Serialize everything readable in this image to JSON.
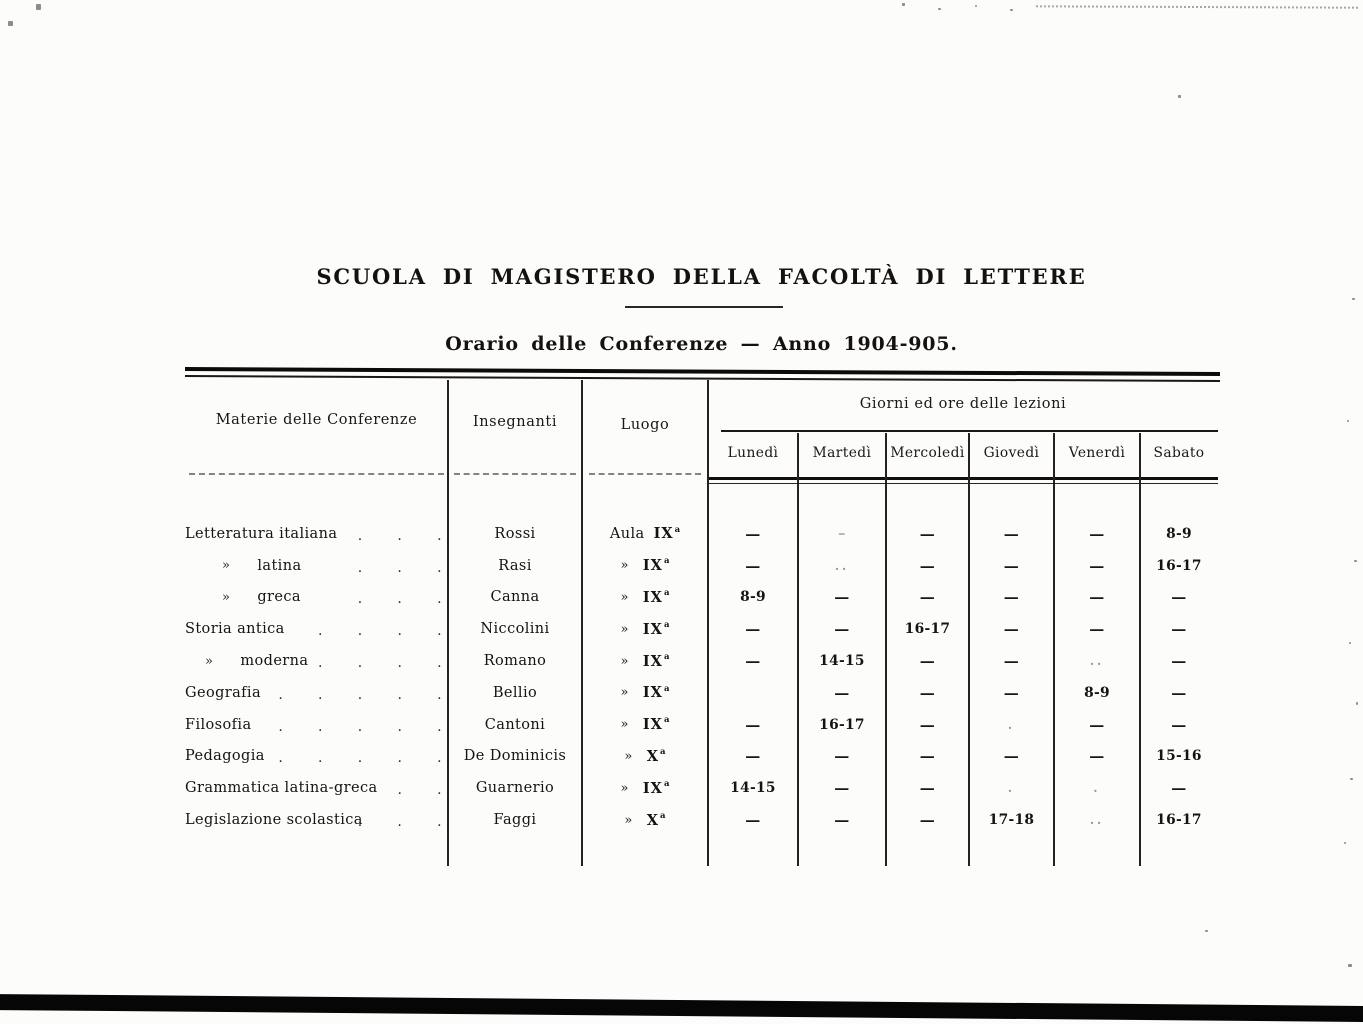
{
  "document": {
    "title": "SCUOLA DI MAGISTERO DELLA FACOLTÀ DI LETTERE",
    "subtitle": "Orario delle Conferenze — Anno 1904-905."
  },
  "table": {
    "headers": {
      "subject": "Materie delle Conferenze",
      "teacher": "Insegnanti",
      "place": "Luogo",
      "days_group": "Giorni ed ore delle lezioni",
      "days": [
        "Lunedì",
        "Martedì",
        "Mercoledì",
        "Giovedì",
        "Venerdì",
        "Sabato"
      ]
    },
    "rows": [
      {
        "subject": "Letteratura italiana",
        "ditto": "",
        "indent": 0,
        "leader": ". . .",
        "teacher": "Rossi",
        "place_prefix": "Aula",
        "place_room": "IX",
        "place_sup": "a",
        "days": [
          "—",
          "–",
          "—",
          "—",
          "—",
          "8-9"
        ]
      },
      {
        "subject": "latina",
        "ditto": "»",
        "indent": 2,
        "leader": ". . .",
        "teacher": "Rasi",
        "place_prefix": "»",
        "place_room": "IX",
        "place_sup": "a",
        "days": [
          "—",
          "..",
          "—",
          "—",
          "—",
          "16-17"
        ]
      },
      {
        "subject": "greca",
        "ditto": "»",
        "indent": 2,
        "leader": ". . .",
        "teacher": "Canna",
        "place_prefix": "»",
        "place_room": "IX",
        "place_sup": "a",
        "days": [
          "8-9",
          "—",
          "—",
          "—",
          "—",
          "—"
        ]
      },
      {
        "subject": "Storia antica",
        "ditto": "",
        "indent": 0,
        "leader": ". . . .",
        "teacher": "Niccolini",
        "place_prefix": "»",
        "place_room": "IX",
        "place_sup": "a",
        "days": [
          "—",
          "—",
          "16-17",
          "—",
          "—",
          "—"
        ]
      },
      {
        "subject": "moderna",
        "ditto": "»",
        "indent": 1,
        "leader": ". . . .",
        "teacher": "Romano",
        "place_prefix": "»",
        "place_room": "IX",
        "place_sup": "a",
        "days": [
          "—",
          "14-15",
          "—",
          "—",
          "..",
          "—"
        ]
      },
      {
        "subject": "Geografia",
        "ditto": "",
        "indent": 0,
        "leader": ". . . . .",
        "teacher": "Bellio",
        "place_prefix": "»",
        "place_room": "IX",
        "place_sup": "a",
        "days": [
          "",
          "—",
          "—",
          "—",
          "8-9",
          "—"
        ]
      },
      {
        "subject": "Filosofia",
        "ditto": "",
        "indent": 0,
        "leader": ". . . . .",
        "teacher": "Cantoni",
        "place_prefix": "»",
        "place_room": "IX",
        "place_sup": "a",
        "days": [
          "—",
          "16-17",
          "—",
          ".",
          "—",
          "—"
        ]
      },
      {
        "subject": "Pedagogia",
        "ditto": "",
        "indent": 0,
        "leader": ". . . . .",
        "teacher": "De Dominicis",
        "place_prefix": "»",
        "place_room": "X",
        "place_sup": "a",
        "days": [
          "—",
          "—",
          "—",
          "—",
          "—",
          "15-16"
        ]
      },
      {
        "subject": "Grammatica latina-greca",
        "ditto": "",
        "indent": 0,
        "leader": ". .",
        "teacher": "Guarnerio",
        "place_prefix": "»",
        "place_room": "IX",
        "place_sup": "a",
        "days": [
          "14-15",
          "—",
          "—",
          ".",
          ".",
          "—"
        ]
      },
      {
        "subject": "Legislazione scolastica",
        "ditto": "",
        "indent": 0,
        "leader": ". . .",
        "teacher": "Faggi",
        "place_prefix": "»",
        "place_room": "X",
        "place_sup": "a",
        "days": [
          "—",
          "—",
          "—",
          "17-18",
          "..",
          "16-17"
        ]
      }
    ]
  },
  "ink": {
    "text": "#17130e",
    "faint": "#968f86",
    "paper": "#fcfcfb"
  }
}
